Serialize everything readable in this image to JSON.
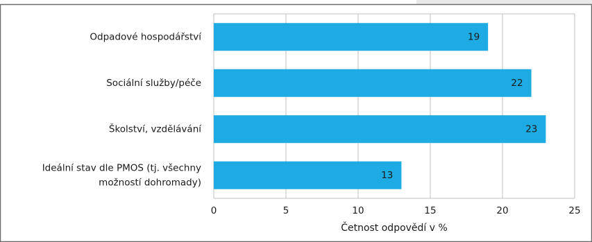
{
  "chart_data": {
    "type": "bar",
    "orientation": "horizontal",
    "categories": [
      "Odpadové hospodářství",
      "Sociální služby/péče",
      "Školství, vzdělávání",
      "Ideální stav dle PMOS (tj. všechny možností dohromady)"
    ],
    "category_lines": [
      [
        "Odpadové hospodářství"
      ],
      [
        "Sociální služby/péče"
      ],
      [
        "Školství, vzdělávání"
      ],
      [
        "Ideální stav dle PMOS (tj. všechny",
        "možností dohromady)"
      ]
    ],
    "values": [
      19,
      22,
      23,
      13
    ],
    "xlabel": "Četnost odpovědí v %",
    "xlim": [
      0,
      25
    ],
    "xticks": [
      0,
      5,
      10,
      15,
      20,
      25
    ],
    "grid": true,
    "data_labels": true,
    "colors": {
      "bar": "#1eaae2",
      "grid": "#bfbfbf",
      "frame": "#6b6b6b",
      "tab": "#e9e9e9"
    }
  }
}
